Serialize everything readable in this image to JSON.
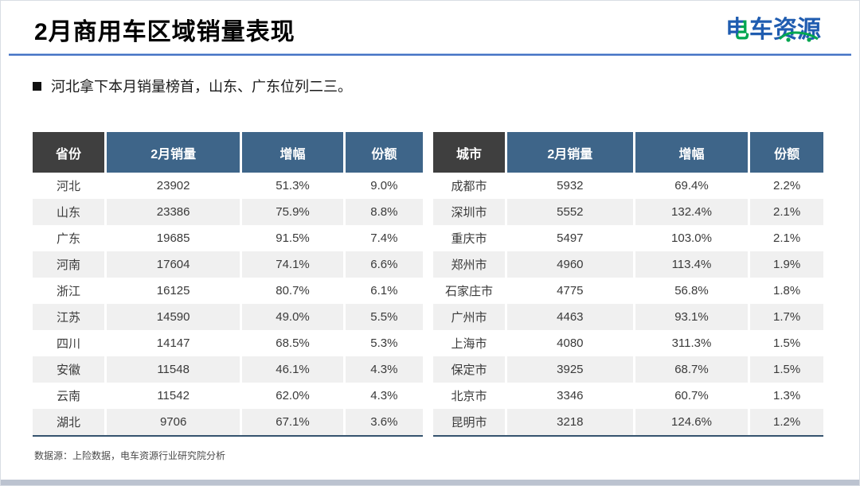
{
  "slide": {
    "title": "2月商用车区域销量表现",
    "bullet_text": "河北拿下本月销量榜首，山东、广东位列二三。",
    "source_note": "数据源：上险数据，电车资源行业研究院分析",
    "logo": {
      "char1": "电",
      "rest": "车资源",
      "brand_blue": "#1f5cb0",
      "brand_green": "#00a650"
    }
  },
  "colors": {
    "header_blue": "#3e6589",
    "header_dark": "#3f3f3f",
    "stripe_gray": "#f0f0f0",
    "rule_blue": "#4472c4",
    "table_bottom_border": "#35536e",
    "bottom_strip": "#bcc3d0"
  },
  "chart_data": [
    {
      "type": "table",
      "title": "省份销量表",
      "columns": [
        "省份",
        "2月销量",
        "增幅",
        "份额"
      ],
      "rows": [
        [
          "河北",
          "23902",
          "51.3%",
          "9.0%"
        ],
        [
          "山东",
          "23386",
          "75.9%",
          "8.8%"
        ],
        [
          "广东",
          "19685",
          "91.5%",
          "7.4%"
        ],
        [
          "河南",
          "17604",
          "74.1%",
          "6.6%"
        ],
        [
          "浙江",
          "16125",
          "80.7%",
          "6.1%"
        ],
        [
          "江苏",
          "14590",
          "49.0%",
          "5.5%"
        ],
        [
          "四川",
          "14147",
          "68.5%",
          "5.3%"
        ],
        [
          "安徽",
          "11548",
          "46.1%",
          "4.3%"
        ],
        [
          "云南",
          "11542",
          "62.0%",
          "4.3%"
        ],
        [
          "湖北",
          "9706",
          "67.1%",
          "3.6%"
        ]
      ]
    },
    {
      "type": "table",
      "title": "城市销量表",
      "columns": [
        "城市",
        "2月销量",
        "增幅",
        "份额"
      ],
      "rows": [
        [
          "成都市",
          "5932",
          "69.4%",
          "2.2%"
        ],
        [
          "深圳市",
          "5552",
          "132.4%",
          "2.1%"
        ],
        [
          "重庆市",
          "5497",
          "103.0%",
          "2.1%"
        ],
        [
          "郑州市",
          "4960",
          "113.4%",
          "1.9%"
        ],
        [
          "石家庄市",
          "4775",
          "56.8%",
          "1.8%"
        ],
        [
          "广州市",
          "4463",
          "93.1%",
          "1.7%"
        ],
        [
          "上海市",
          "4080",
          "311.3%",
          "1.5%"
        ],
        [
          "保定市",
          "3925",
          "68.7%",
          "1.5%"
        ],
        [
          "北京市",
          "3346",
          "60.7%",
          "1.3%"
        ],
        [
          "昆明市",
          "3218",
          "124.6%",
          "1.2%"
        ]
      ]
    }
  ]
}
